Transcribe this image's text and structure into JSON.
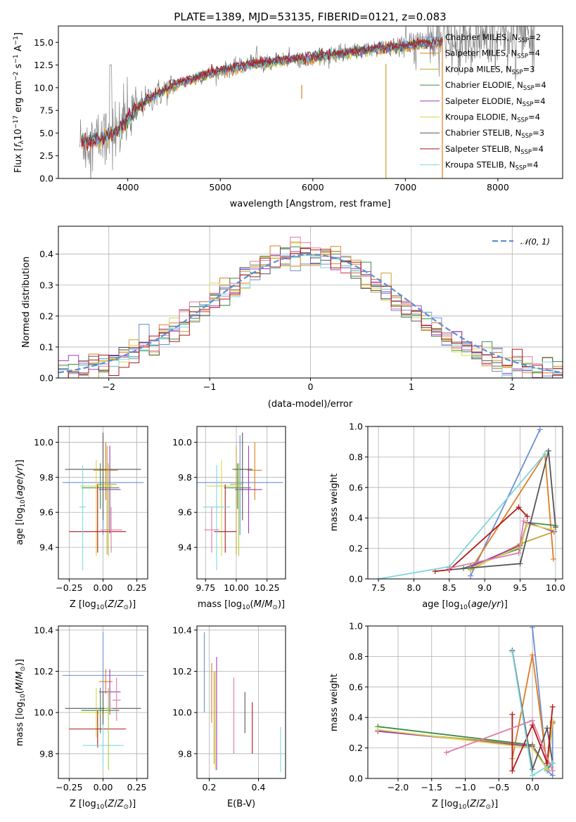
{
  "figure": {
    "title": "PLATE=1389, MJD=53135, FIBERID=0121, z=0.083",
    "colors": {
      "chabrier_miles": "#6a8fd8",
      "salpeter_miles": "#e07b20",
      "kroupa_miles": "#c8a030",
      "chabrier_elodie": "#3c8c4a",
      "salpeter_elodie": "#a03ab8",
      "kroupa_elodie": "#d8d84a",
      "chabrier_stelib": "#555555",
      "salpeter_stelib": "#b01818",
      "kroupa_stelib": "#7ed6dc",
      "extra_pink": "#e07aa8",
      "extra_lime": "#a8cc40",
      "spectrum_gray": "#808080",
      "normal_fit": "#5b8fd8"
    }
  },
  "chart_data": [
    {
      "id": "spectrum",
      "type": "line",
      "xlabel": "wavelength [Angstrom, rest frame]",
      "ylabel": "Flux [f_λ 10^-17 erg cm^-2 s^-1 A^-1]",
      "xlim": [
        3250,
        8700
      ],
      "ylim": [
        0,
        16.8
      ],
      "xticks": [
        4000,
        5000,
        6000,
        7000,
        8000
      ],
      "yticks": [
        0.0,
        2.5,
        5.0,
        7.5,
        10.0,
        12.5,
        15.0
      ],
      "grid": false,
      "legend_position": "upper right",
      "legend": [
        {
          "label": "Chabrier MILES, N",
          "sub": "SSP",
          "tail": "=2",
          "color_key": "chabrier_miles"
        },
        {
          "label": "Salpeter MILES, N",
          "sub": "SSP",
          "tail": "=4",
          "color_key": "salpeter_miles"
        },
        {
          "label": "Kroupa MILES, N",
          "sub": "SSP",
          "tail": "=3",
          "color_key": "kroupa_miles"
        },
        {
          "label": "Chabrier ELODIE, N",
          "sub": "SSP",
          "tail": "=4",
          "color_key": "chabrier_elodie"
        },
        {
          "label": "Salpeter ELODIE, N",
          "sub": "SSP",
          "tail": "=4",
          "color_key": "salpeter_elodie"
        },
        {
          "label": "Kroupa ELODIE, N",
          "sub": "SSP",
          "tail": "=4",
          "color_key": "kroupa_elodie"
        },
        {
          "label": "Chabrier STELIB, N",
          "sub": "SSP",
          "tail": "=3",
          "color_key": "chabrier_stelib"
        },
        {
          "label": "Salpeter STELIB, N",
          "sub": "SSP",
          "tail": "=4",
          "color_key": "salpeter_stelib"
        },
        {
          "label": "Kroupa STELIB, N",
          "sub": "SSP",
          "tail": "=4",
          "color_key": "kroupa_stelib"
        }
      ],
      "continuum_wavelength": [
        3500,
        3600,
        3700,
        3800,
        3900,
        4000,
        4100,
        4200,
        4300,
        4400,
        4500,
        4700,
        4900,
        5100,
        5300,
        5500,
        5700,
        5900,
        6100,
        6300,
        6500,
        6700,
        6900,
        7100,
        7300,
        7400
      ],
      "continuum_flux": [
        4.0,
        4.1,
        4.3,
        4.8,
        5.3,
        6.5,
        7.6,
        8.6,
        9.2,
        9.7,
        10.3,
        11.0,
        11.6,
        12.1,
        12.5,
        12.8,
        13.0,
        13.2,
        13.5,
        13.7,
        14.0,
        14.3,
        14.5,
        14.7,
        15.0,
        15.1
      ],
      "observed_noise_extends_to": 8400,
      "vertical_spikes": [
        {
          "x": 5880,
          "ymin": 8.8,
          "ymax": 10.3,
          "color_key": "salpeter_miles"
        },
        {
          "x": 6790,
          "ymin": 0,
          "ymax": 12.6,
          "color_key": "kroupa_miles"
        },
        {
          "x": 7400,
          "ymin": 0,
          "ymax": 15.4,
          "color_key": "salpeter_miles"
        }
      ]
    },
    {
      "id": "residuals",
      "type": "area",
      "xlabel": "(data-model)/error",
      "ylabel": "Normed distribution",
      "xlim": [
        -2.5,
        2.5
      ],
      "ylim": [
        0,
        0.49
      ],
      "xticks": [
        -2,
        -1,
        0,
        1,
        2
      ],
      "yticks": [
        0.0,
        0.1,
        0.2,
        0.3,
        0.4
      ],
      "grid": true,
      "legend_position": "upper right",
      "legend": [
        {
          "label": "𝒩(0, 1)",
          "color_key": "normal_fit"
        }
      ],
      "bin_width": 0.1,
      "gaussian_peak": 0.3989
    },
    {
      "id": "z_vs_age",
      "type": "scatter",
      "xlabel": "Z [log10(Z/Z⊙)]",
      "ylabel": "age [log10(age/yr)]",
      "xlim": [
        -0.33,
        0.33
      ],
      "ylim": [
        9.22,
        10.09
      ],
      "xticks": [
        -0.25,
        0.0,
        0.25
      ],
      "xtick_labels": [
        "−0.25",
        "0.00",
        "0.25"
      ],
      "yticks": [
        9.4,
        9.6,
        9.8,
        10.0
      ],
      "grid": true,
      "points": [
        {
          "x": 0.0,
          "dx": 0.3,
          "y": 9.77,
          "dy_low": 0.3,
          "dy_high": 0.27,
          "color_key": "chabrier_miles"
        },
        {
          "x": 0.02,
          "dx": 0.09,
          "y": 9.84,
          "dy_low": 0.17,
          "dy_high": 0.16,
          "color_key": "salpeter_miles"
        },
        {
          "x": 0.03,
          "dx": 0.07,
          "y": 9.76,
          "dy_low": 0.4,
          "dy_high": 0.22,
          "color_key": "kroupa_miles"
        },
        {
          "x": -0.02,
          "dx": 0.14,
          "y": 9.74,
          "dy_low": 0.12,
          "dy_high": 0.14,
          "color_key": "chabrier_elodie"
        },
        {
          "x": 0.05,
          "dx": 0.08,
          "y": 9.73,
          "dy_low": 0.25,
          "dy_high": 0.25,
          "color_key": "salpeter_elodie"
        },
        {
          "x": -0.05,
          "dx": 0.12,
          "y": 9.75,
          "dy_low": 0.4,
          "dy_high": 0.15,
          "color_key": "kroupa_elodie"
        },
        {
          "x": 0.0,
          "dx": 0.28,
          "y": 9.845,
          "dy_low": 0.29,
          "dy_high": 0.21,
          "color_key": "chabrier_stelib"
        },
        {
          "x": -0.04,
          "dx": 0.21,
          "y": 9.49,
          "dy_low": 0.12,
          "dy_high": 0.27,
          "color_key": "salpeter_stelib"
        },
        {
          "x": -0.15,
          "dx": 0.025,
          "y": 9.63,
          "dy_low": 0.36,
          "dy_high": 0.24,
          "color_key": "kroupa_stelib"
        },
        {
          "x": 0.06,
          "dx": 0.08,
          "y": 9.5,
          "dy_low": 0.13,
          "dy_high": 0.13,
          "color_key": "extra_pink"
        },
        {
          "x": 0.04,
          "dx": 0.04,
          "y": 9.76,
          "dy_low": 0.41,
          "dy_high": 0.12,
          "color_key": "extra_lime"
        }
      ]
    },
    {
      "id": "mass_vs_age",
      "type": "scatter",
      "xlabel": "mass [log10(M/M⊙)]",
      "ylabel": "",
      "xlim": [
        9.68,
        10.4
      ],
      "ylim": [
        9.22,
        10.09
      ],
      "xticks": [
        9.75,
        10.0,
        10.25
      ],
      "xtick_labels": [
        "9.75",
        "10.00",
        "10.25"
      ],
      "yticks": [
        9.4,
        9.6,
        9.8,
        10.0
      ],
      "grid": true,
      "points": [
        {
          "x": 10.03,
          "dx": 0.35,
          "y": 9.77,
          "dy_low": 0.3,
          "dy_high": 0.27,
          "color_key": "chabrier_miles"
        },
        {
          "x": 10.15,
          "dx": 0.06,
          "y": 9.84,
          "dy_low": 0.17,
          "dy_high": 0.16,
          "color_key": "salpeter_miles"
        },
        {
          "x": 10.0,
          "dx": 0.05,
          "y": 9.76,
          "dy_low": 0.4,
          "dy_high": 0.22,
          "color_key": "kroupa_miles"
        },
        {
          "x": 10.01,
          "dx": 0.11,
          "y": 9.74,
          "dy_low": 0.12,
          "dy_high": 0.14,
          "color_key": "chabrier_elodie"
        },
        {
          "x": 10.1,
          "dx": 0.11,
          "y": 9.73,
          "dy_low": 0.25,
          "dy_high": 0.25,
          "color_key": "salpeter_elodie"
        },
        {
          "x": 9.88,
          "dx": 0.12,
          "y": 9.75,
          "dy_low": 0.4,
          "dy_high": 0.15,
          "color_key": "kroupa_elodie"
        },
        {
          "x": 10.05,
          "dx": 0.08,
          "y": 9.845,
          "dy_low": 0.29,
          "dy_high": 0.21,
          "color_key": "chabrier_stelib"
        },
        {
          "x": 9.91,
          "dx": 0.09,
          "y": 9.49,
          "dy_low": 0.12,
          "dy_high": 0.27,
          "color_key": "salpeter_stelib"
        },
        {
          "x": 9.84,
          "dx": 0.11,
          "y": 9.63,
          "dy_low": 0.36,
          "dy_high": 0.24,
          "color_key": "kroupa_stelib"
        },
        {
          "x": 9.8,
          "dx": 0.06,
          "y": 9.5,
          "dy_low": 0.13,
          "dy_high": 0.13,
          "color_key": "extra_pink"
        },
        {
          "x": 10.02,
          "dx": 0.03,
          "y": 9.76,
          "dy_low": 0.41,
          "dy_high": 0.12,
          "color_key": "extra_lime"
        }
      ]
    },
    {
      "id": "age_vs_weight",
      "type": "line",
      "xlabel": "age [log10(age/yr)]",
      "ylabel": "mass weight",
      "xlim": [
        7.35,
        10.1
      ],
      "ylim": [
        0,
        1.0
      ],
      "xticks": [
        7.5,
        8.0,
        8.5,
        9.0,
        9.5,
        10.0
      ],
      "yticks": [
        0.0,
        0.2,
        0.4,
        0.6,
        0.8,
        1.0
      ],
      "grid": true,
      "series": [
        {
          "color_key": "chabrier_miles",
          "x": [
            8.8,
            9.78
          ],
          "y": [
            0.02,
            0.98
          ]
        },
        {
          "color_key": "salpeter_miles",
          "x": [
            8.8,
            9.85,
            9.97
          ],
          "y": [
            0.06,
            0.82,
            0.13
          ]
        },
        {
          "color_key": "kroupa_miles",
          "x": [
            8.8,
            9.5,
            9.98
          ],
          "y": [
            0.06,
            0.23,
            0.31
          ]
        },
        {
          "color_key": "chabrier_elodie",
          "x": [
            8.7,
            9.5,
            9.6,
            10.0
          ],
          "y": [
            0.07,
            0.2,
            0.37,
            0.35
          ]
        },
        {
          "color_key": "salpeter_elodie",
          "x": [
            8.8,
            9.5,
            9.6,
            9.98
          ],
          "y": [
            0.08,
            0.22,
            0.37,
            0.31
          ]
        },
        {
          "color_key": "kroupa_elodie",
          "x": [
            8.8,
            9.5,
            9.6,
            9.98
          ],
          "y": [
            0.07,
            0.21,
            0.36,
            0.32
          ]
        },
        {
          "color_key": "chabrier_stelib",
          "x": [
            8.5,
            9.5,
            9.9,
            10.0
          ],
          "y": [
            0.06,
            0.1,
            0.84,
            0.34
          ]
        },
        {
          "color_key": "salpeter_stelib",
          "x": [
            8.3,
            8.5,
            9.48,
            9.6
          ],
          "y": [
            0.05,
            0.06,
            0.47,
            0.41
          ]
        },
        {
          "color_key": "kroupa_stelib",
          "x": [
            7.5,
            8.5,
            9.85
          ],
          "y": [
            0.0,
            0.08,
            0.82
          ]
        },
        {
          "color_key": "extra_pink",
          "x": [
            8.5,
            9.48,
            9.55
          ],
          "y": [
            0.07,
            0.17,
            0.38
          ]
        }
      ]
    },
    {
      "id": "z_vs_mass",
      "type": "scatter",
      "xlabel": "Z [log10(Z/Z⊙)]",
      "ylabel": "mass [log10(M/M⊙)]",
      "xlim": [
        -0.33,
        0.33
      ],
      "ylim": [
        9.68,
        10.42
      ],
      "xticks": [
        -0.25,
        0.0,
        0.25
      ],
      "xtick_labels": [
        "−0.25",
        "0.00",
        "0.25"
      ],
      "yticks": [
        9.8,
        10.0,
        10.2,
        10.4
      ],
      "grid": true,
      "points": [
        {
          "x": 0.0,
          "dx": 0.3,
          "y": 10.18,
          "dy_low": 0.18,
          "dy_high": 0.21,
          "color_key": "chabrier_miles"
        },
        {
          "x": 0.02,
          "dx": 0.05,
          "y": 10.15,
          "dy_low": 0.06,
          "dy_high": 0.06,
          "color_key": "salpeter_miles"
        },
        {
          "x": 0.0,
          "dx": 0.05,
          "y": 10.0,
          "dy_low": 0.05,
          "dy_high": 0.06,
          "color_key": "kroupa_miles"
        },
        {
          "x": -0.02,
          "dx": 0.14,
          "y": 10.01,
          "dy_low": 0.11,
          "dy_high": 0.11,
          "color_key": "chabrier_elodie"
        },
        {
          "x": 0.05,
          "dx": 0.08,
          "y": 10.1,
          "dy_low": 0.11,
          "dy_high": 0.11,
          "color_key": "salpeter_elodie"
        },
        {
          "x": -0.05,
          "dx": 0.12,
          "y": 10.0,
          "dy_low": 0.12,
          "dy_high": 0.12,
          "color_key": "kroupa_elodie"
        },
        {
          "x": 0.0,
          "dx": 0.28,
          "y": 10.02,
          "dy_low": 0.08,
          "dy_high": 0.08,
          "color_key": "chabrier_stelib"
        },
        {
          "x": -0.04,
          "dx": 0.21,
          "y": 9.92,
          "dy_low": 0.09,
          "dy_high": 0.09,
          "color_key": "salpeter_stelib"
        },
        {
          "x": 0.0,
          "dx": 0.15,
          "y": 9.84,
          "dy_low": 0.1,
          "dy_high": 0.1,
          "color_key": "kroupa_stelib"
        },
        {
          "x": 0.1,
          "dx": 0.03,
          "y": 10.06,
          "dy_low": 0.1,
          "dy_high": 0.11,
          "color_key": "extra_pink"
        },
        {
          "x": 0.04,
          "dx": 0.03,
          "y": 10.02,
          "dy_low": 0.3,
          "dy_high": 0.1,
          "color_key": "extra_lime"
        }
      ]
    },
    {
      "id": "ebv_vs_mass",
      "type": "scatter",
      "xlabel": "E(B-V)",
      "ylabel": "",
      "xlim": [
        0.15,
        0.51
      ],
      "ylim": [
        9.68,
        10.42
      ],
      "xticks": [
        0.2,
        0.4
      ],
      "xtick_labels": [
        "0.2",
        "0.4"
      ],
      "yticks": [
        9.8,
        10.0,
        10.2,
        10.4
      ],
      "grid": true,
      "points": [
        {
          "x": 0.18,
          "y_low": 10.0,
          "y_high": 10.39,
          "color_key": "chabrier_miles"
        },
        {
          "x": 0.21,
          "y_low": 9.95,
          "y_high": 10.24,
          "color_key": "salpeter_miles"
        },
        {
          "x": 0.22,
          "y_low": 9.75,
          "y_high": 10.2,
          "color_key": "kroupa_miles"
        },
        {
          "x": 0.23,
          "y_low": 9.72,
          "y_high": 10.27,
          "color_key": "salpeter_elodie"
        },
        {
          "x": 0.225,
          "y_low": 9.72,
          "y_high": 10.2,
          "color_key": "kroupa_elodie"
        },
        {
          "x": 0.3,
          "y_low": 9.8,
          "y_high": 10.17,
          "color_key": "extra_pink"
        },
        {
          "x": 0.345,
          "y_low": 9.9,
          "y_high": 10.1,
          "color_key": "chabrier_stelib"
        },
        {
          "x": 0.375,
          "y_low": 9.8,
          "y_high": 10.05,
          "color_key": "salpeter_stelib"
        },
        {
          "x": 0.49,
          "y_low": 9.71,
          "y_high": 9.93,
          "color_key": "kroupa_stelib"
        }
      ]
    },
    {
      "id": "z_vs_weight",
      "type": "line",
      "xlabel": "Z [log10(Z/Z⊙)]",
      "ylabel": "mass weight",
      "xlim": [
        -2.45,
        0.45
      ],
      "ylim": [
        0,
        1.0
      ],
      "xticks": [
        -2.0,
        -1.5,
        -1.0,
        -0.5,
        0.0
      ],
      "xtick_labels": [
        "−2.0",
        "−1.5",
        "−1.0",
        "−0.5",
        "0.0"
      ],
      "yticks": [
        0.0,
        0.2,
        0.4,
        0.6,
        0.8,
        1.0
      ],
      "grid": true,
      "series": [
        {
          "color_key": "chabrier_miles",
          "x": [
            0.0,
            0.22,
            0.3,
            0.3
          ],
          "y": [
            0.99,
            0.05,
            0.02,
            0.37
          ]
        },
        {
          "color_key": "salpeter_miles",
          "x": [
            -0.3,
            0.0,
            0.22,
            0.3
          ],
          "y": [
            0.13,
            0.81,
            0.08,
            0.36
          ]
        },
        {
          "color_key": "kroupa_miles",
          "x": [
            -2.3,
            0.0,
            0.22,
            0.3
          ],
          "y": [
            0.31,
            0.22,
            0.06,
            0.37
          ]
        },
        {
          "color_key": "chabrier_elodie",
          "x": [
            -2.3,
            0.0,
            0.22,
            0.3
          ],
          "y": [
            0.34,
            0.22,
            0.06,
            0.1
          ]
        },
        {
          "color_key": "salpeter_elodie",
          "x": [
            -2.3,
            0.0,
            0.22,
            0.3
          ],
          "y": [
            0.31,
            0.21,
            0.06,
            0.37
          ]
        },
        {
          "color_key": "kroupa_elodie",
          "x": [
            -2.3,
            0.0,
            0.22,
            0.3
          ],
          "y": [
            0.32,
            0.2,
            0.06,
            0.38
          ]
        },
        {
          "color_key": "chabrier_stelib",
          "x": [
            -0.3,
            0.0,
            0.22,
            0.3
          ],
          "y": [
            0.84,
            0.06,
            0.33,
            0.1
          ]
        },
        {
          "color_key": "salpeter_stelib",
          "x": [
            -0.3,
            -0.3,
            0.0,
            0.22,
            0.3
          ],
          "y": [
            0.42,
            0.05,
            0.35,
            0.1,
            0.47
          ]
        },
        {
          "color_key": "kroupa_stelib",
          "x": [
            -0.3,
            0.0,
            0.3
          ],
          "y": [
            0.83,
            0.02,
            0.1
          ]
        },
        {
          "color_key": "extra_pink",
          "x": [
            -1.28,
            0.0,
            0.3
          ],
          "y": [
            0.17,
            0.38,
            0.05
          ]
        }
      ]
    }
  ]
}
